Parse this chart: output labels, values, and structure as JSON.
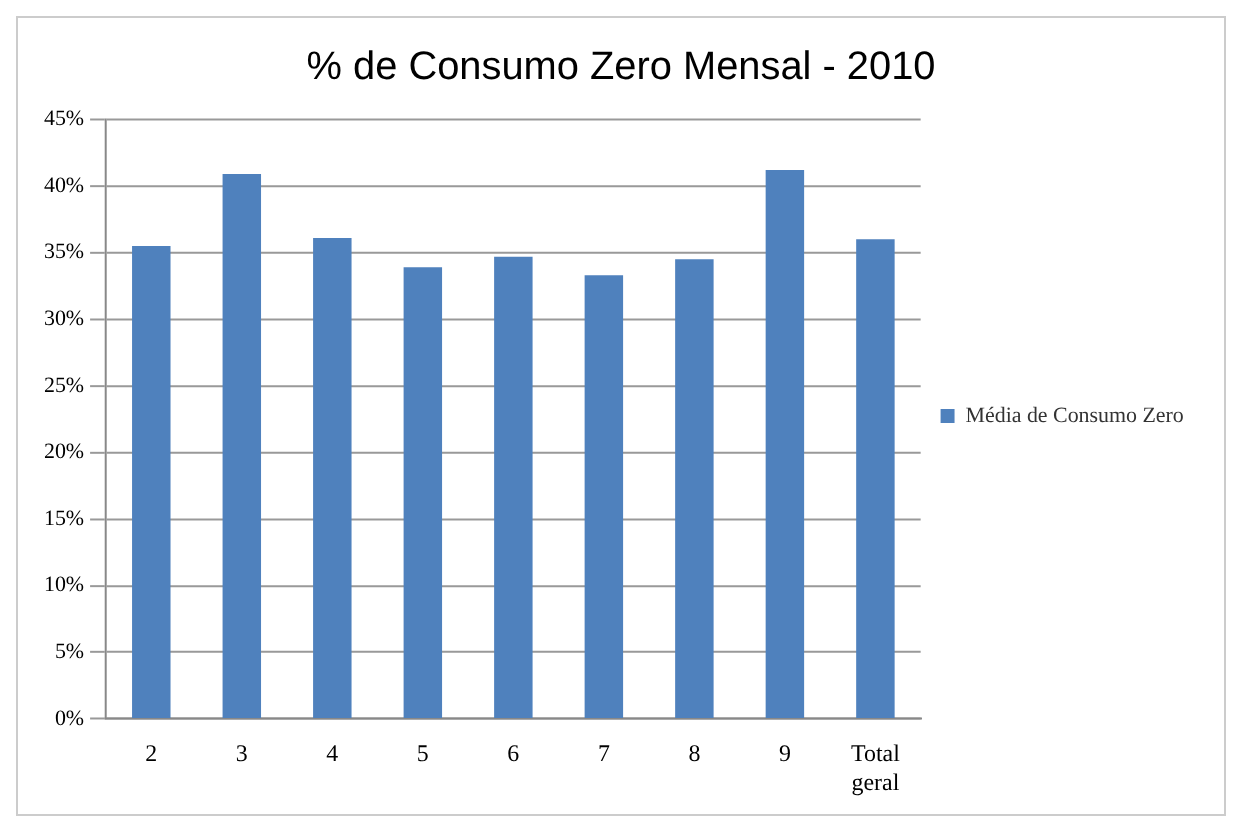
{
  "chart_data": {
    "type": "bar",
    "title": "% de Consumo Zero Mensal - 2010",
    "categories": [
      "2",
      "3",
      "4",
      "5",
      "6",
      "7",
      "8",
      "9",
      "Total geral"
    ],
    "series": [
      {
        "name": "Média de Consumo Zero",
        "color": "#4f81bd",
        "values": [
          35.5,
          40.9,
          36.1,
          33.9,
          34.7,
          33.3,
          34.5,
          41.2,
          36.0
        ]
      }
    ],
    "ylim": [
      0,
      45
    ],
    "yticks": [
      {
        "value": 0,
        "label": "0%"
      },
      {
        "value": 5,
        "label": "5%"
      },
      {
        "value": 10,
        "label": "10%"
      },
      {
        "value": 15,
        "label": "15%"
      },
      {
        "value": 20,
        "label": "20%"
      },
      {
        "value": 25,
        "label": "25%"
      },
      {
        "value": 30,
        "label": "30%"
      },
      {
        "value": 35,
        "label": "35%"
      },
      {
        "value": 40,
        "label": "40%"
      },
      {
        "value": 45,
        "label": "45%"
      }
    ],
    "grid": "y",
    "legend": "right"
  }
}
